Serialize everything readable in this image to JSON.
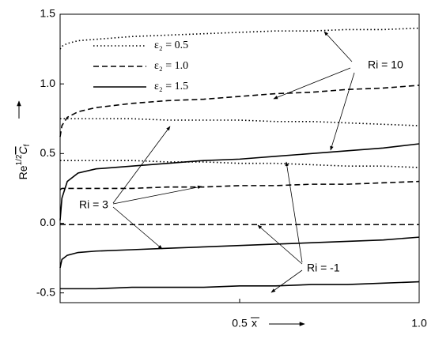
{
  "chart_data": {
    "type": "line",
    "ylabel": {
      "base": "Re",
      "sup": "1/2",
      "main": "C",
      "sub": "f"
    },
    "xlabel": "x",
    "xlim": [
      0,
      1
    ],
    "ylim": [
      -0.57,
      1.5
    ],
    "xticks": [
      {
        "value": 0.5,
        "label": "0.5"
      },
      {
        "value": 1,
        "label": "1.0"
      }
    ],
    "yticks": [
      {
        "value": 1.5,
        "label": "1.5"
      },
      {
        "value": 1,
        "label": "1.0"
      },
      {
        "value": 0.5,
        "label": "0.5"
      },
      {
        "value": 0,
        "label": "0.0"
      },
      -0.5
    ],
    "color": "#000000",
    "legend": [
      {
        "label": "ε₂ = 0.5",
        "style": "dotted"
      },
      {
        "label": "ε₂ = 1.0",
        "style": "dashed"
      },
      {
        "label": "ε₂ = 1.5",
        "style": "solid"
      }
    ],
    "x": [
      0,
      0.005,
      0.02,
      0.05,
      0.1,
      0.2,
      0.3,
      0.4,
      0.5,
      0.6,
      0.7,
      0.8,
      0.9,
      1.0
    ],
    "series": [
      {
        "style": "dotted",
        "values": [
          1.25,
          1.27,
          1.29,
          1.31,
          1.32,
          1.34,
          1.35,
          1.36,
          1.37,
          1.38,
          1.38,
          1.39,
          1.39,
          1.4
        ]
      },
      {
        "style": "dashed",
        "values": [
          0.62,
          0.7,
          0.76,
          0.8,
          0.83,
          0.86,
          0.88,
          0.89,
          0.91,
          0.93,
          0.94,
          0.96,
          0.97,
          0.99
        ]
      },
      {
        "style": "solid",
        "values": [
          0.02,
          0.18,
          0.3,
          0.36,
          0.39,
          0.41,
          0.43,
          0.45,
          0.46,
          0.48,
          0.5,
          0.52,
          0.54,
          0.57
        ]
      },
      {
        "style": "dotted",
        "values": [
          0.75,
          0.75,
          0.75,
          0.75,
          0.75,
          0.75,
          0.74,
          0.74,
          0.74,
          0.73,
          0.73,
          0.72,
          0.71,
          0.7
        ]
      },
      {
        "style": "dashed",
        "values": [
          0.24,
          0.25,
          0.25,
          0.25,
          0.25,
          0.25,
          0.26,
          0.26,
          0.27,
          0.27,
          0.28,
          0.28,
          0.29,
          0.3
        ]
      },
      {
        "style": "solid",
        "values": [
          -0.32,
          -0.26,
          -0.23,
          -0.21,
          -0.2,
          -0.19,
          -0.18,
          -0.17,
          -0.16,
          -0.15,
          -0.14,
          -0.13,
          -0.12,
          -0.1
        ]
      },
      {
        "style": "dotted",
        "values": [
          0.45,
          0.45,
          0.45,
          0.45,
          0.45,
          0.45,
          0.44,
          0.44,
          0.43,
          0.43,
          0.42,
          0.41,
          0.41,
          0.4
        ]
      },
      {
        "style": "dashed",
        "values": [
          -0.01,
          -0.01,
          -0.01,
          -0.01,
          -0.01,
          -0.01,
          -0.01,
          -0.01,
          -0.01,
          -0.01,
          -0.01,
          -0.01,
          -0.01,
          -0.01
        ]
      },
      {
        "style": "solid",
        "values": [
          -0.47,
          -0.47,
          -0.47,
          -0.47,
          -0.47,
          -0.46,
          -0.46,
          -0.46,
          -0.45,
          -0.45,
          -0.44,
          -0.44,
          -0.43,
          -0.42
        ]
      }
    ],
    "annotations": [
      {
        "text": "Ri = 10"
      },
      {
        "text": "Ri = 3"
      },
      {
        "text": "Ri = -1"
      }
    ]
  }
}
